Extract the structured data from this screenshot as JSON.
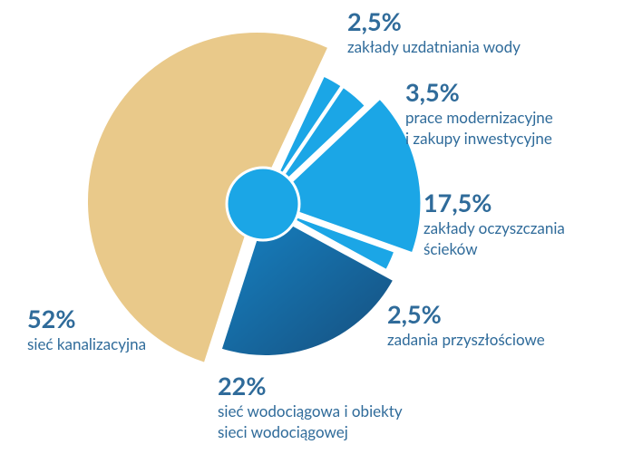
{
  "chart_data": {
    "type": "pie",
    "categories": [
      "zakłady uzdatniania wody",
      "prace modernizacyjne\ni zakupy inwestycyjne",
      "zakłady oczyszczania\nścieków",
      "zadania przyszłościowe",
      "sieć wodociągowa i obiekty\nsieci wodociągowej",
      "sieć kanalizacyjna"
    ],
    "values": [
      2.5,
      3.5,
      17.5,
      2.5,
      22,
      52
    ],
    "value_labels": [
      "2,5%",
      "3,5%",
      "17,5%",
      "2,5%",
      "22%",
      "52%"
    ],
    "colors": [
      "#1ba6e6",
      "#1ba6e6",
      "#1ba6e6",
      "#1ba6e6",
      "#1c6596",
      "#e9c98a"
    ]
  }
}
